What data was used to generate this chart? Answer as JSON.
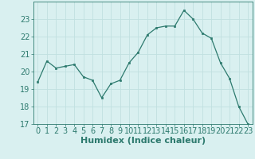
{
  "x": [
    0,
    1,
    2,
    3,
    4,
    5,
    6,
    7,
    8,
    9,
    10,
    11,
    12,
    13,
    14,
    15,
    16,
    17,
    18,
    19,
    20,
    21,
    22,
    23
  ],
  "y": [
    19.4,
    20.6,
    20.2,
    20.3,
    20.4,
    19.7,
    19.5,
    18.5,
    19.3,
    19.5,
    20.5,
    21.1,
    22.1,
    22.5,
    22.6,
    22.6,
    23.5,
    23.0,
    22.2,
    21.9,
    20.5,
    19.6,
    18.0,
    17.0
  ],
  "xlim": [
    -0.5,
    23.5
  ],
  "ylim": [
    17,
    24
  ],
  "yticks": [
    17,
    18,
    19,
    20,
    21,
    22,
    23
  ],
  "xticks": [
    0,
    1,
    2,
    3,
    4,
    5,
    6,
    7,
    8,
    9,
    10,
    11,
    12,
    13,
    14,
    15,
    16,
    17,
    18,
    19,
    20,
    21,
    22,
    23
  ],
  "xlabel": "Humidex (Indice chaleur)",
  "line_color": "#2d7a6e",
  "marker_color": "#2d7a6e",
  "bg_color": "#d9f0f0",
  "grid_color": "#c0e0e0",
  "axis_color": "#2d7a6e",
  "tick_color": "#2d7a6e",
  "xlabel_color": "#2d7a6e",
  "xlabel_fontsize": 8,
  "tick_fontsize": 7
}
